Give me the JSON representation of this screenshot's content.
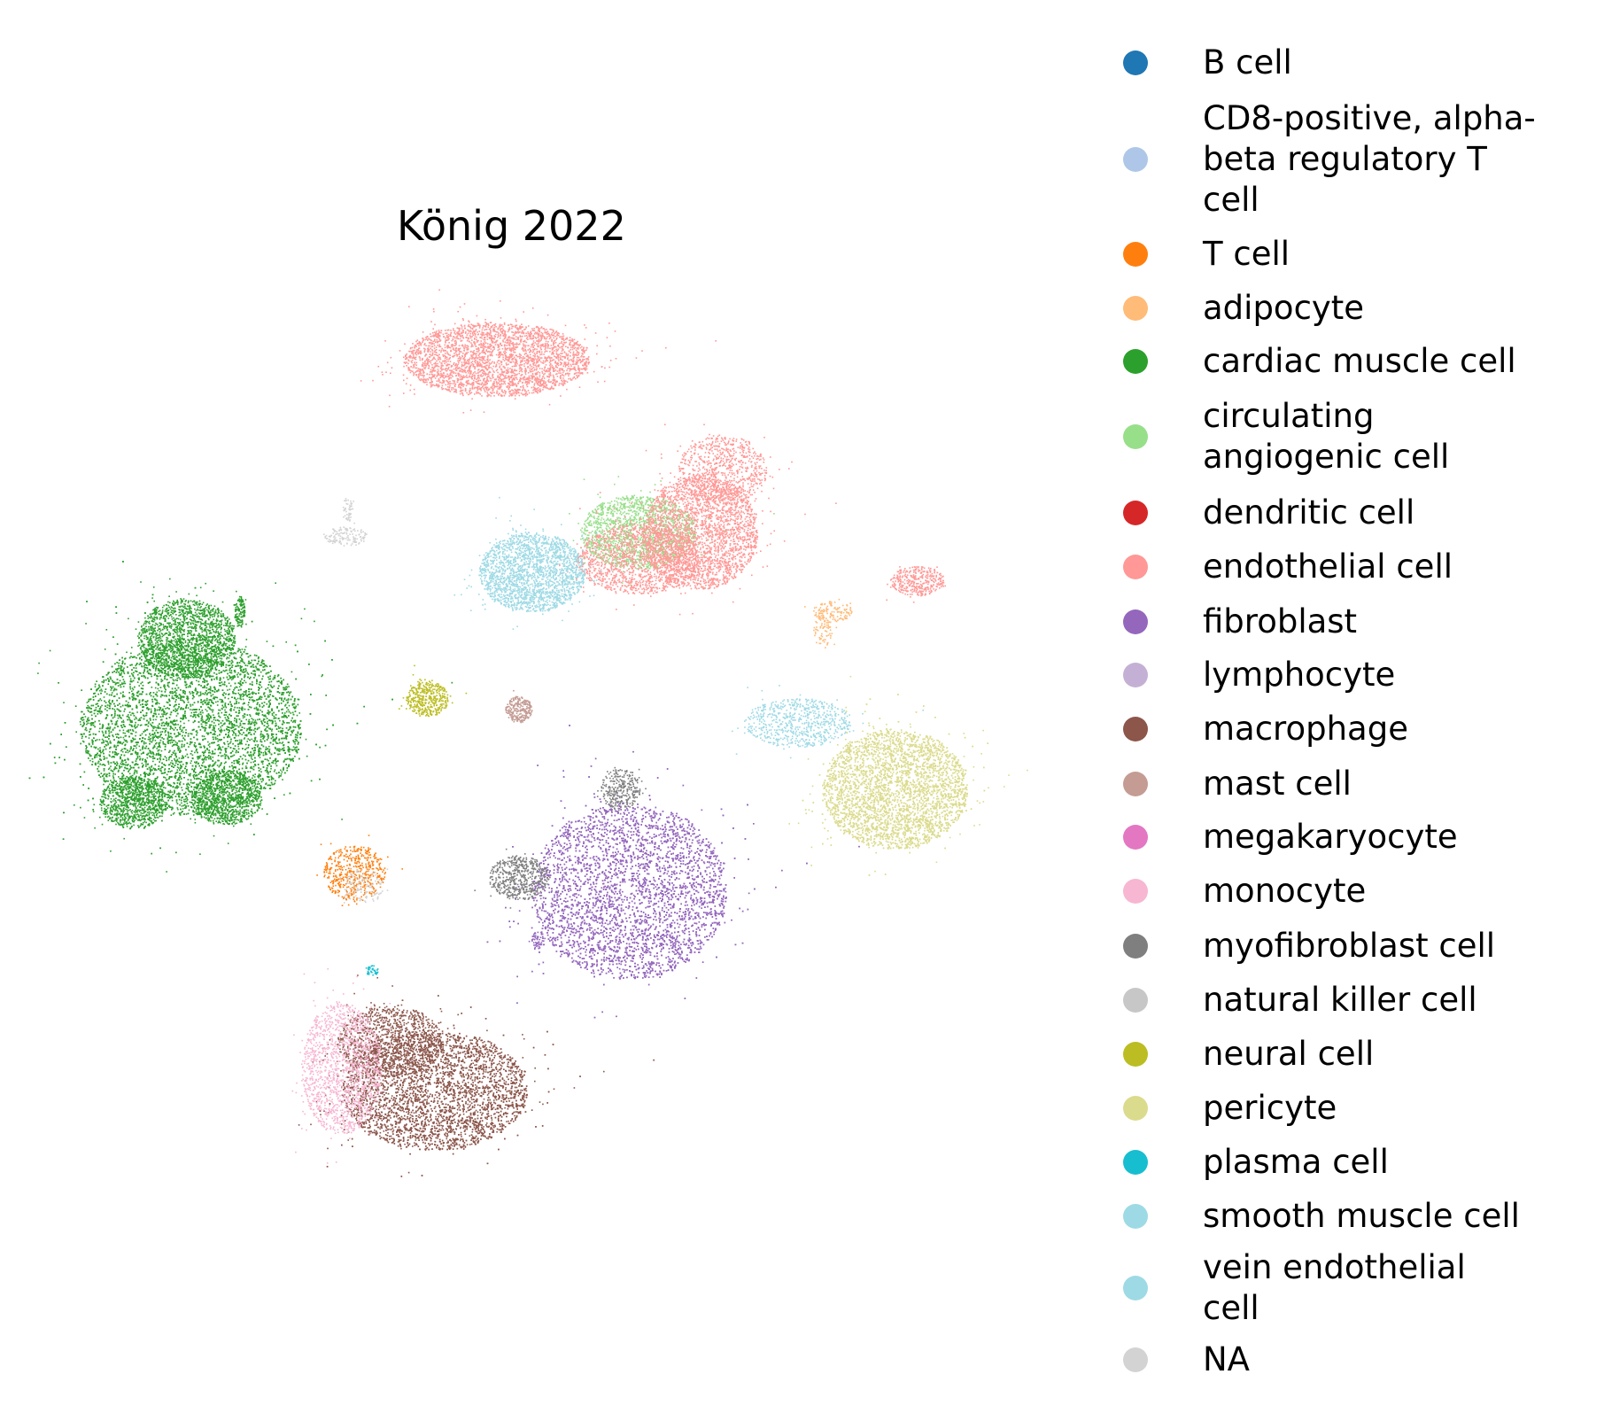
{
  "chart_data": {
    "type": "scatter",
    "title": "König 2022",
    "xlabel": "",
    "ylabel": "",
    "axes_visible": false,
    "grid": false,
    "legend_position": "right",
    "series": [
      {
        "name": "B cell",
        "color": "#1f77b4",
        "clusters": []
      },
      {
        "name": "CD8-positive, alpha-\nbeta regulatory T\ncell",
        "color": "#aec7e8",
        "clusters": []
      },
      {
        "name": "T cell",
        "color": "#ff7f0e",
        "clusters": [
          {
            "cx": 400,
            "cy": 985,
            "rx": 35,
            "ry": 32,
            "n": 500
          }
        ]
      },
      {
        "name": "adipocyte",
        "color": "#ffbb78",
        "clusters": [
          {
            "cx": 940,
            "cy": 690,
            "rx": 22,
            "ry": 12,
            "n": 140
          },
          {
            "cx": 928,
            "cy": 712,
            "rx": 10,
            "ry": 18,
            "n": 70
          }
        ]
      },
      {
        "name": "cardiac muscle cell",
        "color": "#2ca02c",
        "clusters": [
          {
            "cx": 215,
            "cy": 820,
            "rx": 125,
            "ry": 100,
            "n": 9000
          },
          {
            "cx": 210,
            "cy": 720,
            "rx": 55,
            "ry": 45,
            "n": 1800
          },
          {
            "cx": 150,
            "cy": 905,
            "rx": 38,
            "ry": 30,
            "n": 900
          },
          {
            "cx": 255,
            "cy": 900,
            "rx": 40,
            "ry": 30,
            "n": 900
          },
          {
            "cx": 270,
            "cy": 690,
            "rx": 6,
            "ry": 18,
            "n": 120
          }
        ]
      },
      {
        "name": "circulating\nangiogenic cell",
        "color": "#98df8a",
        "clusters": [
          {
            "cx": 720,
            "cy": 600,
            "rx": 65,
            "ry": 42,
            "n": 1700
          }
        ]
      },
      {
        "name": "dendritic cell",
        "color": "#d62728",
        "clusters": []
      },
      {
        "name": "endothelial cell",
        "color": "#ff9896",
        "clusters": [
          {
            "cx": 560,
            "cy": 405,
            "rx": 105,
            "ry": 42,
            "n": 3200
          },
          {
            "cx": 790,
            "cy": 600,
            "rx": 65,
            "ry": 65,
            "n": 2600
          },
          {
            "cx": 815,
            "cy": 530,
            "rx": 50,
            "ry": 40,
            "n": 800
          },
          {
            "cx": 720,
            "cy": 630,
            "rx": 70,
            "ry": 40,
            "n": 1400
          },
          {
            "cx": 1035,
            "cy": 655,
            "rx": 30,
            "ry": 17,
            "n": 380
          }
        ]
      },
      {
        "name": "fibroblast",
        "color": "#9467bd",
        "clusters": [
          {
            "cx": 710,
            "cy": 1005,
            "rx": 110,
            "ry": 100,
            "n": 8200
          },
          {
            "cx": 607,
            "cy": 1060,
            "rx": 8,
            "ry": 10,
            "n": 60
          }
        ]
      },
      {
        "name": "lymphocyte",
        "color": "#c5b0d5",
        "clusters": []
      },
      {
        "name": "macrophage",
        "color": "#8c564b",
        "clusters": [
          {
            "cx": 490,
            "cy": 1230,
            "rx": 105,
            "ry": 68,
            "n": 5200
          },
          {
            "cx": 440,
            "cy": 1175,
            "rx": 60,
            "ry": 40,
            "n": 1200
          }
        ]
      },
      {
        "name": "mast cell",
        "color": "#c49c94",
        "clusters": [
          {
            "cx": 585,
            "cy": 800,
            "rx": 15,
            "ry": 15,
            "n": 260
          }
        ]
      },
      {
        "name": "megakaryocyte",
        "color": "#e377c2",
        "clusters": []
      },
      {
        "name": "monocyte",
        "color": "#f7b6d2",
        "clusters": [
          {
            "cx": 385,
            "cy": 1205,
            "rx": 45,
            "ry": 75,
            "n": 1500
          }
        ]
      },
      {
        "name": "myofibroblast cell",
        "color": "#7f7f7f",
        "clusters": [
          {
            "cx": 585,
            "cy": 990,
            "rx": 34,
            "ry": 25,
            "n": 550
          },
          {
            "cx": 700,
            "cy": 890,
            "rx": 22,
            "ry": 24,
            "n": 300
          }
        ]
      },
      {
        "name": "natural killer cell",
        "color": "#c7c7c7",
        "clusters": []
      },
      {
        "name": "neural cell",
        "color": "#bcbd22",
        "clusters": [
          {
            "cx": 482,
            "cy": 788,
            "rx": 24,
            "ry": 20,
            "n": 420
          }
        ]
      },
      {
        "name": "pericyte",
        "color": "#dbdb8d",
        "clusters": [
          {
            "cx": 1010,
            "cy": 890,
            "rx": 82,
            "ry": 68,
            "n": 4800
          }
        ]
      },
      {
        "name": "plasma cell",
        "color": "#17becf",
        "clusters": [
          {
            "cx": 420,
            "cy": 1095,
            "rx": 6,
            "ry": 6,
            "n": 40
          }
        ]
      },
      {
        "name": "smooth muscle cell",
        "color": "#9edae5",
        "clusters": [
          {
            "cx": 600,
            "cy": 645,
            "rx": 60,
            "ry": 45,
            "n": 2200
          },
          {
            "cx": 900,
            "cy": 815,
            "rx": 60,
            "ry": 28,
            "n": 700
          }
        ]
      },
      {
        "name": "vein endothelial\ncell",
        "color": "#9edae5",
        "clusters": []
      },
      {
        "name": "NA",
        "color": "#d3d3d3",
        "clusters": [
          {
            "cx": 390,
            "cy": 605,
            "rx": 24,
            "ry": 11,
            "n": 140
          },
          {
            "cx": 392,
            "cy": 575,
            "rx": 6,
            "ry": 14,
            "n": 50
          },
          {
            "cx": 410,
            "cy": 1000,
            "rx": 22,
            "ry": 20,
            "n": 120
          }
        ]
      }
    ]
  }
}
